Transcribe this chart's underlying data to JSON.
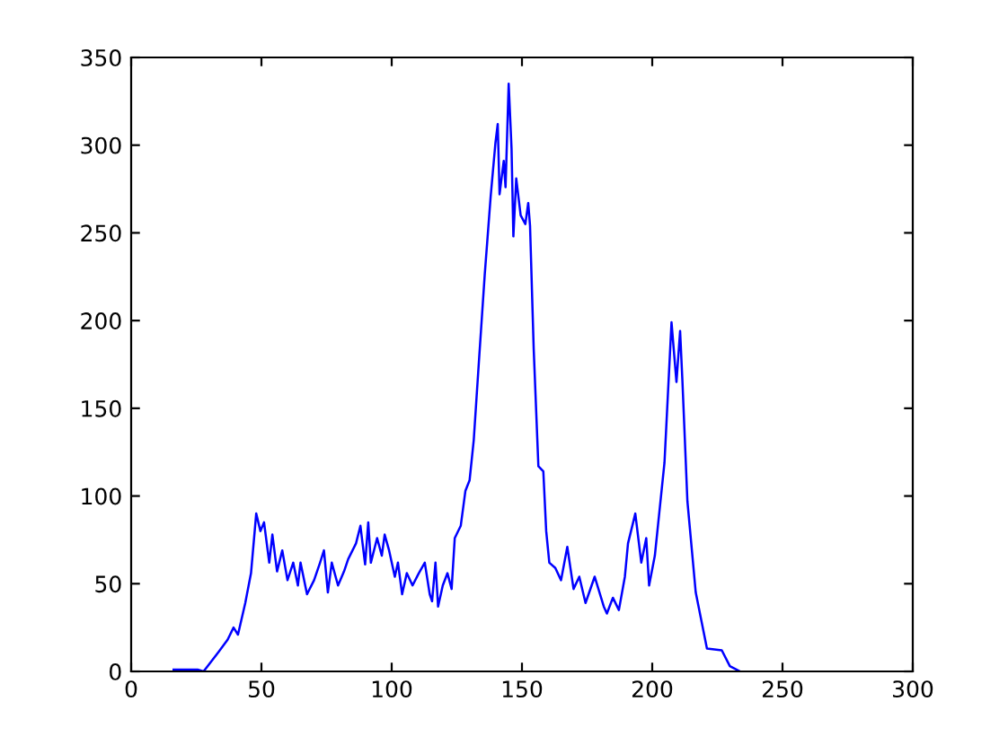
{
  "chart_data": {
    "type": "line",
    "xlim": [
      0,
      300
    ],
    "ylim": [
      0,
      350
    ],
    "xticks": [
      0,
      50,
      100,
      150,
      200,
      250,
      300
    ],
    "yticks": [
      0,
      50,
      100,
      150,
      200,
      250,
      300,
      350
    ],
    "grid": false,
    "legend": false,
    "marker": "none",
    "line_style": "solid",
    "series": [
      {
        "color": "#0000ff",
        "x": [
          16.3,
          25.5,
          27.8,
          33.5,
          37,
          39.3,
          41,
          43.8,
          46,
          48,
          49.6,
          51,
          53,
          54.2,
          56,
          58,
          60,
          62.2,
          64,
          65,
          67.5,
          70.2,
          72.5,
          74,
          75.5,
          77,
          79.4,
          81.7,
          83.3,
          86.3,
          88,
          89.8,
          91,
          92,
          94.4,
          96.2,
          97.3,
          99,
          101.2,
          102.4,
          104,
          105.8,
          108,
          110.4,
          112.7,
          114.6,
          115.5,
          116.8,
          117.8,
          119.6,
          121.4,
          123,
          124.2,
          126.5,
          128.3,
          129.9,
          131.5,
          133.4,
          135.7,
          138,
          139.8,
          140.7,
          141.4,
          143,
          143.7,
          144.9,
          146,
          146.7,
          147.8,
          149.5,
          151.3,
          152.4,
          153.1,
          154.5,
          156.3,
          158.2,
          159.3,
          160.5,
          162.8,
          165,
          167.4,
          169.8,
          172,
          174.4,
          177.9,
          181.4,
          182.6,
          184.9,
          187.2,
          189.5,
          190.7,
          193.5,
          195.8,
          197.7,
          198.8,
          201,
          204.7,
          207.4,
          209.3,
          210.7,
          211.6,
          213.5,
          216.7,
          221,
          226.7,
          229.8,
          233.7
        ],
        "values": [
          1,
          1,
          0,
          11,
          18,
          25,
          21,
          39,
          56,
          90,
          80,
          85,
          62,
          78,
          57,
          69,
          52,
          62,
          49,
          62,
          44,
          52,
          62,
          69,
          45,
          62,
          49,
          57,
          64,
          73,
          83,
          61,
          85,
          62,
          76,
          66,
          78,
          69,
          54,
          62,
          44,
          56,
          49,
          56,
          62,
          44,
          40,
          62,
          37,
          49,
          56,
          47,
          76,
          83,
          103,
          109,
          132,
          175,
          226,
          271,
          301,
          312,
          272,
          291,
          276,
          335,
          298,
          248,
          281,
          260,
          255,
          267,
          254,
          184,
          117,
          114,
          80,
          62,
          59,
          52,
          71,
          47,
          54,
          39,
          54,
          37,
          33,
          42,
          35,
          54,
          73,
          90,
          62,
          76,
          49,
          66,
          119,
          199,
          165,
          194,
          165,
          97,
          45,
          13,
          12,
          3,
          0
        ]
      }
    ]
  }
}
